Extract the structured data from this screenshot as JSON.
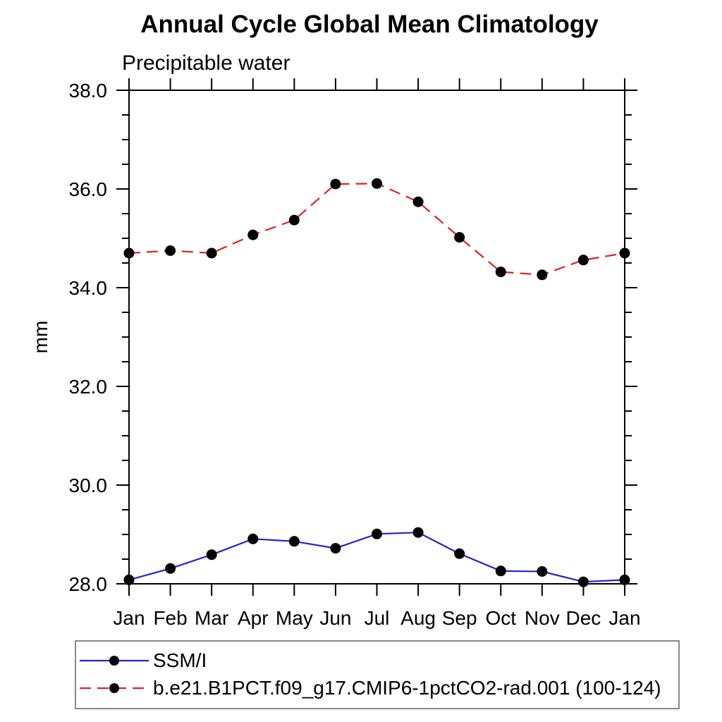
{
  "page": {
    "background_color": "#ffffff"
  },
  "chart_data": {
    "type": "line",
    "title": "Annual Cycle Global Mean Climatology",
    "subtitle": "Precipitable water",
    "ylabel": "mm",
    "xlabel": "",
    "x_categories": [
      "Jan",
      "Feb",
      "Mar",
      "Apr",
      "May",
      "Jun",
      "Jul",
      "Aug",
      "Sep",
      "Oct",
      "Nov",
      "Dec",
      "Jan"
    ],
    "ylim": [
      28.0,
      38.0
    ],
    "y_major_ticks": [
      28.0,
      30.0,
      32.0,
      34.0,
      36.0,
      38.0
    ],
    "y_tick_labels": [
      "28.0",
      "30.0",
      "32.0",
      "34.0",
      "36.0",
      "38.0"
    ],
    "y_minor_step": 0.5,
    "grid": false,
    "legend_position": "bottom-left",
    "axis_color": "#000000",
    "legend_border_color": "#888888",
    "series": [
      {
        "name": "SSM/I",
        "color": "#2222cc",
        "line_style": "solid",
        "marker": "filled-circle",
        "marker_color": "#000000",
        "values": [
          28.08,
          28.31,
          28.59,
          28.91,
          28.86,
          28.72,
          29.01,
          29.04,
          28.61,
          28.26,
          28.25,
          28.04,
          28.08
        ]
      },
      {
        "name": "b.e21.B1PCT.f09_g17.CMIP6-1pctCO2-rad.001 (100-124)",
        "color": "#e62020",
        "line_style": "dashed",
        "marker": "filled-circle",
        "marker_color": "#000000",
        "values": [
          34.7,
          34.75,
          34.7,
          35.07,
          35.37,
          36.1,
          36.11,
          35.74,
          35.02,
          34.32,
          34.26,
          34.56,
          34.7
        ]
      }
    ]
  }
}
